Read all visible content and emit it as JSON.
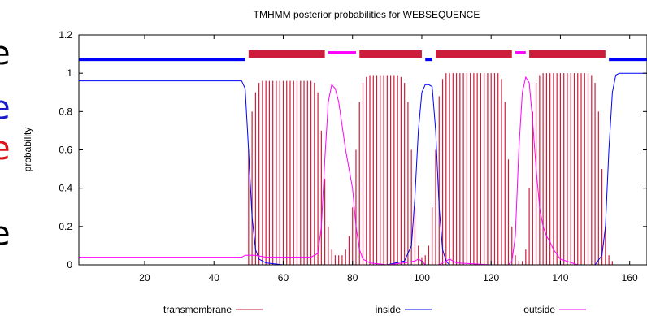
{
  "chart_data": {
    "type": "line",
    "title": "TMHMM posterior probabilities for WEBSEQUENCE",
    "ylabel": "probability",
    "xlabel": "",
    "xlim": [
      1,
      165
    ],
    "ylim": [
      0,
      1.2
    ],
    "xticks": [
      "20",
      "40",
      "60",
      "80",
      "100",
      "120",
      "140",
      "160"
    ],
    "xtick_values": [
      20,
      40,
      60,
      80,
      100,
      120,
      140,
      160
    ],
    "yticks": [
      "0",
      "0.2",
      "0.4",
      "0.6",
      "0.8",
      "1",
      "1.2"
    ],
    "ytick_values": [
      0,
      0.2,
      0.4,
      0.6,
      0.8,
      1.0,
      1.2
    ],
    "legend_position": "bottom",
    "series": [
      {
        "name": "transmembrane",
        "color": "#cc1e3c",
        "style": "impulses",
        "x": [
          50,
          51,
          52,
          53,
          54,
          55,
          56,
          57,
          58,
          59,
          60,
          61,
          62,
          63,
          64,
          65,
          66,
          67,
          68,
          69,
          70,
          71,
          72,
          73,
          74,
          75,
          76,
          77,
          78,
          79,
          80,
          81,
          82,
          83,
          84,
          85,
          86,
          87,
          88,
          89,
          90,
          91,
          92,
          93,
          94,
          95,
          96,
          97,
          98,
          99,
          100,
          101,
          102,
          103,
          104,
          105,
          106,
          107,
          108,
          109,
          110,
          111,
          112,
          113,
          114,
          115,
          116,
          117,
          118,
          119,
          120,
          121,
          122,
          123,
          124,
          125,
          126,
          127,
          128,
          129,
          130,
          131,
          132,
          133,
          134,
          135,
          136,
          137,
          138,
          139,
          140,
          141,
          142,
          143,
          144,
          145,
          146,
          147,
          148,
          149,
          150,
          151,
          152,
          153,
          154,
          155
        ],
        "values": [
          0.6,
          0.8,
          0.9,
          0.95,
          0.96,
          0.96,
          0.96,
          0.96,
          0.96,
          0.96,
          0.96,
          0.96,
          0.96,
          0.96,
          0.96,
          0.96,
          0.96,
          0.96,
          0.96,
          0.95,
          0.9,
          0.7,
          0.45,
          0.2,
          0.08,
          0.05,
          0.05,
          0.05,
          0.08,
          0.15,
          0.3,
          0.6,
          0.85,
          0.95,
          0.98,
          0.99,
          0.99,
          0.99,
          0.99,
          0.99,
          0.99,
          0.99,
          0.99,
          0.99,
          0.98,
          0.95,
          0.85,
          0.6,
          0.3,
          0.1,
          0.04,
          0.05,
          0.1,
          0.3,
          0.6,
          0.88,
          0.97,
          1.0,
          1.0,
          1.0,
          1.0,
          1.0,
          1.0,
          1.0,
          1.0,
          1.0,
          1.0,
          1.0,
          1.0,
          1.0,
          1.0,
          1.0,
          1.0,
          0.97,
          0.85,
          0.55,
          0.2,
          0.05,
          0.02,
          0.02,
          0.08,
          0.4,
          0.8,
          0.95,
          0.99,
          1.0,
          1.0,
          1.0,
          1.0,
          1.0,
          1.0,
          1.0,
          1.0,
          1.0,
          1.0,
          1.0,
          1.0,
          1.0,
          1.0,
          0.99,
          0.95,
          0.8,
          0.5,
          0.2,
          0.05,
          0.02
        ]
      },
      {
        "name": "inside",
        "color": "#0000ff",
        "style": "line",
        "x": [
          1,
          48,
          49,
          50,
          51,
          52,
          53,
          55,
          60,
          70,
          80,
          90,
          95,
          97,
          98,
          99,
          100,
          101,
          102,
          103,
          104,
          105,
          106,
          107,
          108,
          110,
          120,
          130,
          140,
          150,
          152,
          153,
          154,
          155,
          156,
          157,
          165
        ],
        "values": [
          0.96,
          0.96,
          0.92,
          0.6,
          0.25,
          0.08,
          0.03,
          0.01,
          0.0,
          0.0,
          0.0,
          0.0,
          0.02,
          0.1,
          0.35,
          0.7,
          0.9,
          0.94,
          0.94,
          0.93,
          0.7,
          0.3,
          0.08,
          0.02,
          0.0,
          0.0,
          0.0,
          0.0,
          0.0,
          0.0,
          0.05,
          0.2,
          0.6,
          0.9,
          0.99,
          1.0,
          1.0
        ]
      },
      {
        "name": "outside",
        "color": "#ff00ff",
        "style": "line",
        "x": [
          1,
          48,
          49,
          50,
          52,
          55,
          60,
          68,
          70,
          71,
          72,
          73,
          74,
          75,
          76,
          78,
          80,
          81,
          82,
          83,
          85,
          90,
          95,
          98,
          99,
          100,
          101,
          102,
          103,
          104,
          105,
          106,
          107,
          108,
          110,
          120,
          125,
          126,
          127,
          128,
          129,
          130,
          131,
          132,
          133,
          134,
          135,
          136,
          137,
          138,
          140,
          145,
          150,
          155,
          160,
          165
        ],
        "values": [
          0.04,
          0.04,
          0.05,
          0.05,
          0.05,
          0.04,
          0.04,
          0.04,
          0.06,
          0.2,
          0.55,
          0.85,
          0.94,
          0.92,
          0.85,
          0.6,
          0.4,
          0.2,
          0.08,
          0.03,
          0.01,
          0.0,
          0.01,
          0.02,
          0.03,
          0.02,
          0.0,
          0.0,
          0.0,
          0.0,
          0.0,
          0.01,
          0.02,
          0.03,
          0.01,
          0.0,
          0.0,
          0.02,
          0.15,
          0.6,
          0.9,
          0.98,
          0.95,
          0.75,
          0.5,
          0.3,
          0.2,
          0.15,
          0.12,
          0.08,
          0.03,
          0.0,
          0.0,
          0.0,
          0.0,
          0.0
        ]
      }
    ],
    "topology_bars": [
      {
        "type": "inside",
        "start": 1,
        "end": 49,
        "color": "#0000ff"
      },
      {
        "type": "transmembrane",
        "start": 50,
        "end": 72,
        "color": "#cc1e3c"
      },
      {
        "type": "outside",
        "start": 73,
        "end": 81,
        "color": "#ff00ff"
      },
      {
        "type": "transmembrane",
        "start": 82,
        "end": 100,
        "color": "#cc1e3c"
      },
      {
        "type": "inside",
        "start": 101,
        "end": 103,
        "color": "#0000ff"
      },
      {
        "type": "transmembrane",
        "start": 104,
        "end": 126,
        "color": "#cc1e3c"
      },
      {
        "type": "outside",
        "start": 127,
        "end": 130,
        "color": "#ff00ff"
      },
      {
        "type": "transmembrane",
        "start": 131,
        "end": 153,
        "color": "#cc1e3c"
      },
      {
        "type": "inside",
        "start": 154,
        "end": 165,
        "color": "#0000ff"
      }
    ]
  },
  "left_fragments": [
    {
      "text": "e",
      "color": "#000000"
    },
    {
      "text": "e",
      "color": "#1a1acc"
    },
    {
      "text": "e",
      "color": "#e0101a"
    },
    {
      "text": "e",
      "color": "#000000"
    }
  ]
}
